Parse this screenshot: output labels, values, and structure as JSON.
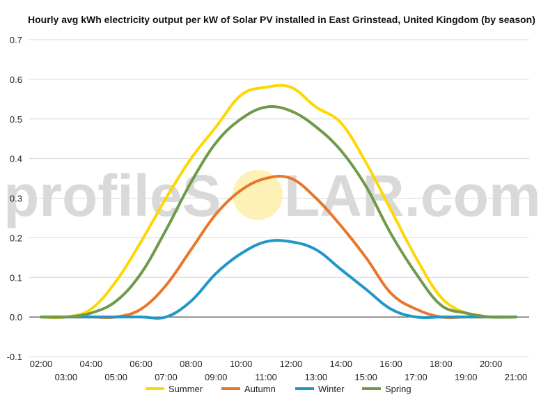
{
  "chart_data": {
    "type": "line",
    "title": "Hourly avg kWh electricity output per kW of Solar PV installed in East Grinstead, United Kingdom (by season)",
    "xlabel": "",
    "ylabel": "",
    "categories": [
      "02:00",
      "03:00",
      "04:00",
      "05:00",
      "06:00",
      "07:00",
      "08:00",
      "09:00",
      "10:00",
      "11:00",
      "12:00",
      "13:00",
      "14:00",
      "15:00",
      "16:00",
      "17:00",
      "18:00",
      "19:00",
      "20:00",
      "21:00"
    ],
    "ylim": [
      -0.1,
      0.7
    ],
    "yticks": [
      "0.7",
      "0.6",
      "0.5",
      "0.4",
      "0.3",
      "0.2",
      "0.1",
      "0.0",
      "-0.1"
    ],
    "ytick_values": [
      0.7,
      0.6,
      0.5,
      0.4,
      0.3,
      0.2,
      0.1,
      0.0,
      -0.1
    ],
    "grid": true,
    "legend_position": "bottom",
    "series": [
      {
        "name": "Summer",
        "color": "#ffd700",
        "values": [
          0.0,
          0.0,
          0.02,
          0.09,
          0.19,
          0.3,
          0.4,
          0.48,
          0.56,
          0.58,
          0.58,
          0.53,
          0.49,
          0.39,
          0.27,
          0.15,
          0.05,
          0.01,
          0.0,
          0.0
        ]
      },
      {
        "name": "Autumn",
        "color": "#e8762b",
        "values": [
          0.0,
          0.0,
          0.0,
          0.0,
          0.02,
          0.08,
          0.17,
          0.26,
          0.32,
          0.35,
          0.35,
          0.3,
          0.23,
          0.15,
          0.06,
          0.02,
          0.0,
          0.0,
          0.0,
          0.0
        ]
      },
      {
        "name": "Winter",
        "color": "#2196c8",
        "values": [
          0.0,
          0.0,
          0.0,
          0.0,
          0.0,
          0.0,
          0.04,
          0.11,
          0.16,
          0.19,
          0.19,
          0.17,
          0.12,
          0.07,
          0.02,
          0.0,
          0.0,
          0.0,
          0.0,
          0.0
        ]
      },
      {
        "name": "Spring",
        "color": "#6e9a4b",
        "values": [
          0.0,
          0.0,
          0.01,
          0.04,
          0.11,
          0.22,
          0.34,
          0.44,
          0.5,
          0.53,
          0.52,
          0.48,
          0.42,
          0.33,
          0.21,
          0.11,
          0.03,
          0.01,
          0.0,
          0.0
        ]
      }
    ]
  },
  "watermark": {
    "left": "profileS",
    "right": "LAR.com",
    "sun_color": "#fdf1b8"
  }
}
